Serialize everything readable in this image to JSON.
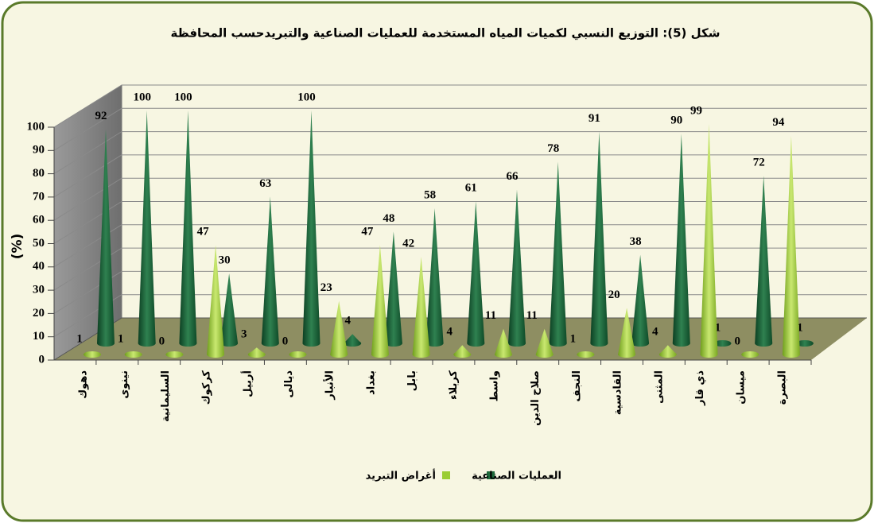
{
  "chart_data": {
    "type": "bar",
    "title": "شكل (5): التوزيع النسبي لكميات المياه المستخدمة للعمليات الصناعية والتبريدحسب المحافظة",
    "y_label": "(%)",
    "categories": [
      "دهوك",
      "نينوى",
      "السليمانية",
      "كركوك",
      "أربيل",
      "ديالى",
      "الأنبار",
      "بغداد",
      "بابل",
      "كربلاء",
      "واسط",
      "صلاح الدين",
      "النجف",
      "القادسية",
      "المثنى",
      "ذي قار",
      "ميسان",
      "البصرة"
    ],
    "series": [
      {
        "name": "أغراض التبريد",
        "color": "#9acd32",
        "values": [
          1,
          1,
          0,
          47,
          3,
          0,
          23,
          47,
          42,
          4,
          11,
          11,
          1,
          20,
          4,
          99,
          0,
          94
        ]
      },
      {
        "name": "العمليات الصناعية",
        "color": "#1e6b3c",
        "values": [
          92,
          100,
          100,
          30,
          63,
          100,
          4,
          48,
          58,
          61,
          66,
          78,
          91,
          38,
          90,
          1,
          72,
          1
        ]
      }
    ],
    "ylim": [
      0,
      100
    ],
    "yticks": [
      0,
      10,
      20,
      30,
      40,
      50,
      60,
      70,
      80,
      90,
      100
    ],
    "grid": true
  }
}
